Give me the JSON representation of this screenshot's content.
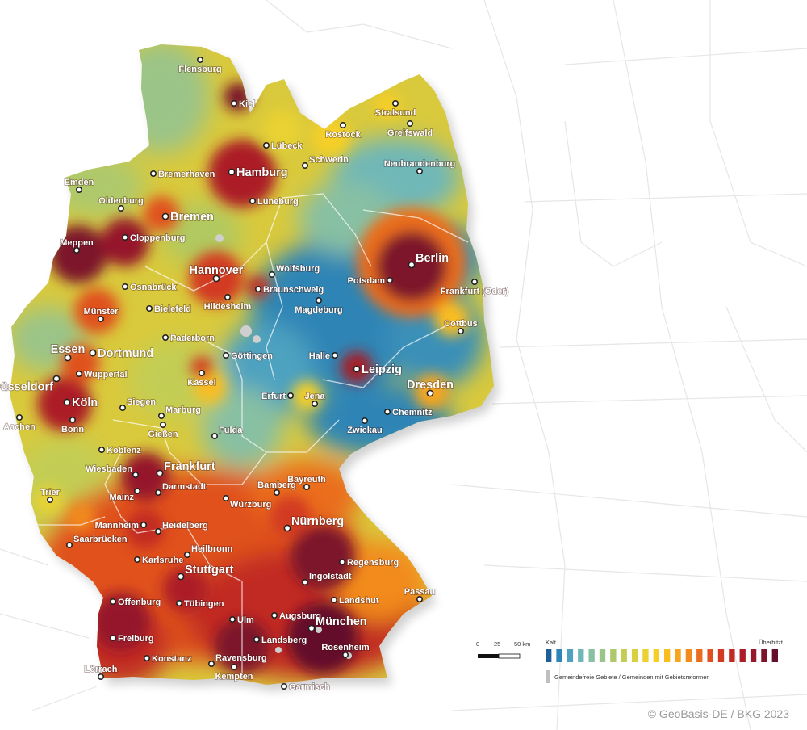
{
  "map": {
    "cities": [
      {
        "name": "Flensburg",
        "size": "small"
      },
      {
        "name": "Kiel",
        "size": "small"
      },
      {
        "name": "Stralsund",
        "size": "small"
      },
      {
        "name": "Rostock",
        "size": "small"
      },
      {
        "name": "Greifswald",
        "size": "small"
      },
      {
        "name": "Lübeck",
        "size": "small"
      },
      {
        "name": "Schwerin",
        "size": "small"
      },
      {
        "name": "Neubrandenburg",
        "size": "small"
      },
      {
        "name": "Hamburg",
        "size": "big"
      },
      {
        "name": "Bremerhaven",
        "size": "small"
      },
      {
        "name": "Emden",
        "size": "small"
      },
      {
        "name": "Lüneburg",
        "size": "small"
      },
      {
        "name": "Oldenburg",
        "size": "small"
      },
      {
        "name": "Bremen",
        "size": "big"
      },
      {
        "name": "Cloppenburg",
        "size": "small"
      },
      {
        "name": "Meppen",
        "size": "small"
      },
      {
        "name": "Berlin",
        "size": "big"
      },
      {
        "name": "Wolfsburg",
        "size": "small"
      },
      {
        "name": "Hannover",
        "size": "big"
      },
      {
        "name": "Potsdam",
        "size": "small"
      },
      {
        "name": "Osnabrück",
        "size": "small"
      },
      {
        "name": "Braunschweig",
        "size": "small"
      },
      {
        "name": "Frankfurt (Oder)",
        "size": "small"
      },
      {
        "name": "Bielefeld",
        "size": "small"
      },
      {
        "name": "Hildesheim",
        "size": "small"
      },
      {
        "name": "Münster",
        "size": "small"
      },
      {
        "name": "Magdeburg",
        "size": "small"
      },
      {
        "name": "Cottbus",
        "size": "small"
      },
      {
        "name": "Paderborn",
        "size": "small"
      },
      {
        "name": "Essen",
        "size": "big"
      },
      {
        "name": "Dortmund",
        "size": "big"
      },
      {
        "name": "Göttingen",
        "size": "small"
      },
      {
        "name": "Halle",
        "size": "small"
      },
      {
        "name": "Leipzig",
        "size": "big"
      },
      {
        "name": "Wuppertal",
        "size": "small"
      },
      {
        "name": "Kassel",
        "size": "small"
      },
      {
        "name": "Düsseldorf",
        "size": "big"
      },
      {
        "name": "Dresden",
        "size": "big"
      },
      {
        "name": "Erfurt",
        "size": "small"
      },
      {
        "name": "Jena",
        "size": "small"
      },
      {
        "name": "Siegen",
        "size": "small"
      },
      {
        "name": "Köln",
        "size": "big"
      },
      {
        "name": "Marburg",
        "size": "small"
      },
      {
        "name": "Aachen",
        "size": "small"
      },
      {
        "name": "Chemnitz",
        "size": "small"
      },
      {
        "name": "Gießen",
        "size": "small"
      },
      {
        "name": "Fulda",
        "size": "small"
      },
      {
        "name": "Bonn",
        "size": "small"
      },
      {
        "name": "Zwickau",
        "size": "small"
      },
      {
        "name": "Koblenz",
        "size": "small"
      },
      {
        "name": "Frankfurt",
        "size": "big"
      },
      {
        "name": "Wiesbaden",
        "size": "small"
      },
      {
        "name": "Darmstadt",
        "size": "small"
      },
      {
        "name": "Bayreuth",
        "size": "small"
      },
      {
        "name": "Bamberg",
        "size": "small"
      },
      {
        "name": "Mainz",
        "size": "small"
      },
      {
        "name": "Trier",
        "size": "small"
      },
      {
        "name": "Würzburg",
        "size": "small"
      },
      {
        "name": "Nürnberg",
        "size": "big"
      },
      {
        "name": "Mannheim",
        "size": "small"
      },
      {
        "name": "Heidelberg",
        "size": "small"
      },
      {
        "name": "Saarbrücken",
        "size": "small"
      },
      {
        "name": "Heilbronn",
        "size": "small"
      },
      {
        "name": "Karlsruhe",
        "size": "small"
      },
      {
        "name": "Regensburg",
        "size": "small"
      },
      {
        "name": "Stuttgart",
        "size": "big"
      },
      {
        "name": "Ingolstadt",
        "size": "small"
      },
      {
        "name": "Passau",
        "size": "small"
      },
      {
        "name": "Offenburg",
        "size": "small"
      },
      {
        "name": "Tübingen",
        "size": "small"
      },
      {
        "name": "Landshut",
        "size": "small"
      },
      {
        "name": "Augsburg",
        "size": "small"
      },
      {
        "name": "Ulm",
        "size": "small"
      },
      {
        "name": "München",
        "size": "big"
      },
      {
        "name": "Landsberg",
        "size": "small"
      },
      {
        "name": "Freiburg",
        "size": "small"
      },
      {
        "name": "Rosenheim",
        "size": "small"
      },
      {
        "name": "Konstanz",
        "size": "small"
      },
      {
        "name": "Ravensburg",
        "size": "small"
      },
      {
        "name": "Lörrach",
        "size": "small"
      },
      {
        "name": "Garmisch",
        "size": "small"
      },
      {
        "name": "Kempten",
        "size": "small"
      }
    ]
  },
  "scale": {
    "ticks": [
      "0",
      "25",
      "50 km"
    ]
  },
  "legend": {
    "low_label": "Kalt",
    "high_label": "Überhitzt",
    "note": "Gemeindefreie Gebiete / Gemeinden mit Gebietsreformen",
    "colors": [
      "#1f5f99",
      "#2f85b5",
      "#4ea2c0",
      "#6fb7b8",
      "#88c0a3",
      "#9bc488",
      "#aec96c",
      "#c3cd55",
      "#d7d040",
      "#e9d231",
      "#f6cf26",
      "#f9bd20",
      "#f7a51e",
      "#f28a1d",
      "#ea6d1e",
      "#e0511f",
      "#d23a22",
      "#c12a24",
      "#ac1f28",
      "#95192b",
      "#7d142c",
      "#64102a"
    ],
    "note_color": "#bfbfbf"
  },
  "credit": "© GeoBasis-DE / BKG 2023"
}
